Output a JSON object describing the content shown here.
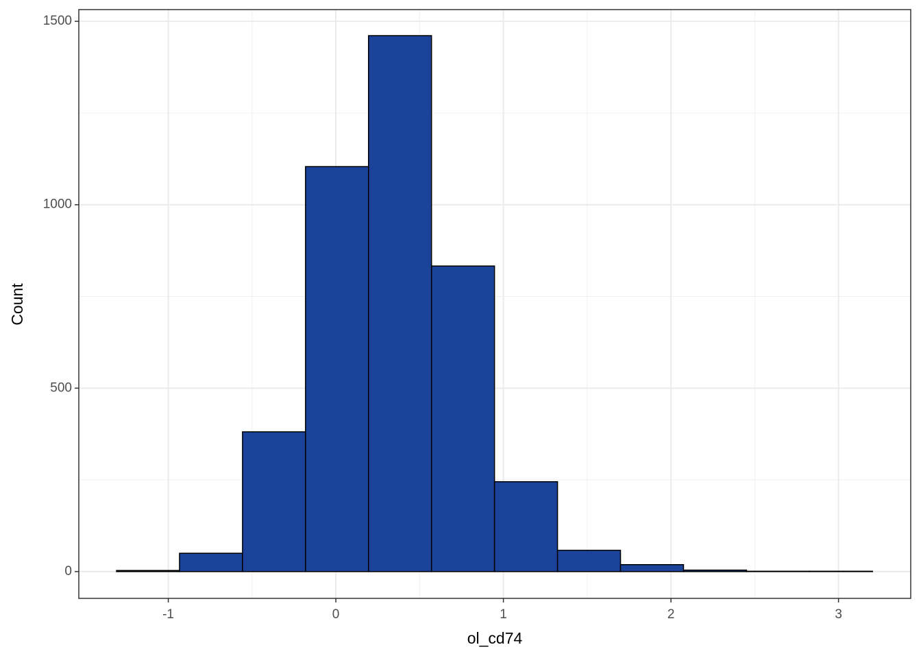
{
  "chart_data": {
    "type": "histogram",
    "x_label": "ol_cd74",
    "y_label": "Count",
    "bins": [
      -1.309,
      -0.933,
      -0.557,
      -0.181,
      0.195,
      0.571,
      0.947,
      1.323,
      1.699,
      2.075,
      2.451,
      2.827,
      3.203
    ],
    "values": [
      3,
      50,
      381,
      1104,
      1461,
      833,
      245,
      58,
      19,
      4,
      1,
      1
    ],
    "color": "#1a4399",
    "edge_color": "#000000",
    "xlim": [
      -1.534,
      3.431
    ],
    "ylim": [
      -73,
      1532
    ],
    "xticks": [
      -1,
      0,
      1,
      2,
      3
    ],
    "yticks": [
      0,
      500,
      1000,
      1500
    ],
    "grid": true
  }
}
